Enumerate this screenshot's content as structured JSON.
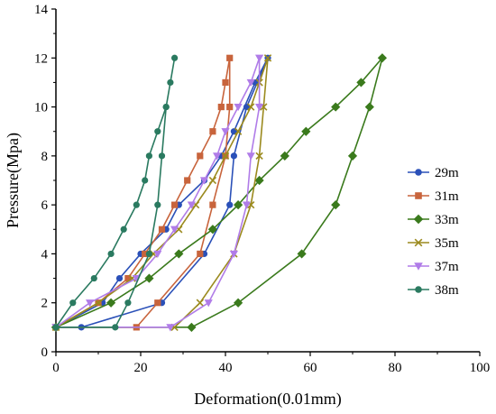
{
  "chart_data": {
    "type": "line",
    "title": "",
    "xlabel": "Deformation(0.01mm)",
    "ylabel": "Pressure(Mpa)",
    "xlim": [
      0,
      100
    ],
    "ylim": [
      0,
      14
    ],
    "xticks": [
      0,
      20,
      40,
      60,
      80,
      100
    ],
    "yticks": [
      0,
      2,
      4,
      6,
      8,
      10,
      12,
      14
    ],
    "grid": false,
    "legend_position": "right",
    "series": [
      {
        "name": "29m",
        "color": "#2a50b8",
        "marker": "circle",
        "points": [
          [
            0,
            1
          ],
          [
            6,
            1
          ],
          [
            25,
            2
          ],
          [
            35,
            4
          ],
          [
            41,
            6
          ],
          [
            42,
            8
          ],
          [
            45,
            10
          ],
          [
            50,
            12
          ],
          [
            47,
            11
          ],
          [
            42,
            9
          ],
          [
            39,
            8
          ],
          [
            35,
            7
          ],
          [
            29,
            6
          ],
          [
            26,
            5
          ],
          [
            20,
            4
          ],
          [
            15,
            3
          ],
          [
            11,
            2
          ],
          [
            0,
            1
          ]
        ]
      },
      {
        "name": "31m",
        "color": "#c8643c",
        "marker": "square",
        "points": [
          [
            0,
            1
          ],
          [
            19,
            1
          ],
          [
            24,
            2
          ],
          [
            34,
            4
          ],
          [
            37,
            6
          ],
          [
            40,
            8
          ],
          [
            41,
            10
          ],
          [
            41,
            12
          ],
          [
            40,
            11
          ],
          [
            39,
            10
          ],
          [
            37,
            9
          ],
          [
            34,
            8
          ],
          [
            31,
            7
          ],
          [
            28,
            6
          ],
          [
            25,
            5
          ],
          [
            21,
            4
          ],
          [
            17,
            3
          ],
          [
            10,
            2
          ],
          [
            0,
            1
          ]
        ]
      },
      {
        "name": "33m",
        "color": "#3a7a1c",
        "marker": "diamond",
        "points": [
          [
            0,
            1
          ],
          [
            32,
            1
          ],
          [
            43,
            2
          ],
          [
            58,
            4
          ],
          [
            66,
            6
          ],
          [
            70,
            8
          ],
          [
            74,
            10
          ],
          [
            77,
            12
          ],
          [
            72,
            11
          ],
          [
            66,
            10
          ],
          [
            59,
            9
          ],
          [
            54,
            8
          ],
          [
            48,
            7
          ],
          [
            43,
            6
          ],
          [
            37,
            5
          ],
          [
            29,
            4
          ],
          [
            22,
            3
          ],
          [
            13,
            2
          ],
          [
            0,
            1
          ]
        ]
      },
      {
        "name": "35m",
        "color": "#9b8a1e",
        "marker": "x",
        "points": [
          [
            0,
            1
          ],
          [
            28,
            1
          ],
          [
            34,
            2
          ],
          [
            42,
            4
          ],
          [
            46,
            6
          ],
          [
            48,
            8
          ],
          [
            49,
            10
          ],
          [
            50,
            12
          ],
          [
            48,
            11
          ],
          [
            46,
            10
          ],
          [
            43,
            9
          ],
          [
            40,
            8
          ],
          [
            37,
            7
          ],
          [
            33,
            6
          ],
          [
            29,
            5
          ],
          [
            23,
            4
          ],
          [
            18,
            3
          ],
          [
            10,
            2
          ],
          [
            0,
            1
          ]
        ]
      },
      {
        "name": "37m",
        "color": "#b07ce8",
        "marker": "triangle-down",
        "points": [
          [
            0,
            1
          ],
          [
            27,
            1
          ],
          [
            36,
            2
          ],
          [
            42,
            4
          ],
          [
            45,
            6
          ],
          [
            46,
            8
          ],
          [
            48,
            10
          ],
          [
            48,
            12
          ],
          [
            46,
            11
          ],
          [
            43,
            10
          ],
          [
            40,
            9
          ],
          [
            38,
            8
          ],
          [
            35,
            7
          ],
          [
            32,
            6
          ],
          [
            28,
            5
          ],
          [
            24,
            4
          ],
          [
            19,
            3
          ],
          [
            8,
            2
          ],
          [
            0,
            1
          ]
        ]
      },
      {
        "name": "38m",
        "color": "#2a7a60",
        "marker": "circle",
        "points": [
          [
            0,
            1
          ],
          [
            14,
            1
          ],
          [
            17,
            2
          ],
          [
            22,
            4
          ],
          [
            24,
            6
          ],
          [
            25,
            8
          ],
          [
            26,
            10
          ],
          [
            28,
            12
          ],
          [
            27,
            11
          ],
          [
            26,
            10
          ],
          [
            24,
            9
          ],
          [
            22,
            8
          ],
          [
            21,
            7
          ],
          [
            19,
            6
          ],
          [
            16,
            5
          ],
          [
            13,
            4
          ],
          [
            9,
            3
          ],
          [
            4,
            2
          ],
          [
            0,
            1
          ]
        ]
      }
    ]
  }
}
